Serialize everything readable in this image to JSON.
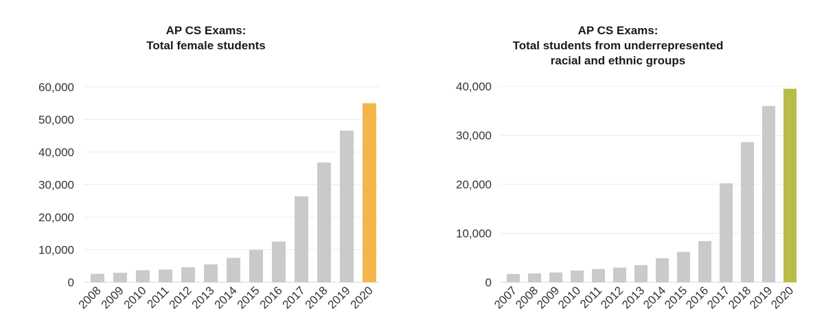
{
  "chart_data": [
    {
      "type": "bar",
      "title_lines": [
        "AP CS Exams:",
        "Total female students"
      ],
      "categories": [
        "2008",
        "2009",
        "2010",
        "2011",
        "2012",
        "2013",
        "2014",
        "2015",
        "2016",
        "2017",
        "2018",
        "2019",
        "2020"
      ],
      "values": [
        2600,
        2900,
        3700,
        3900,
        4600,
        5500,
        7500,
        10000,
        12500,
        26400,
        36800,
        46600,
        55000
      ],
      "ylim": [
        0,
        60000
      ],
      "yticks": [
        0,
        10000,
        20000,
        30000,
        40000,
        50000,
        60000
      ],
      "ytick_labels": [
        "0",
        "10,000",
        "20,000",
        "30,000",
        "40,000",
        "50,000",
        "60,000"
      ],
      "grid": true,
      "bar_color": "#c8cacb",
      "highlight_color": "#f4b54a",
      "highlight_index": 12
    },
    {
      "type": "bar",
      "title_lines": [
        "AP CS Exams:",
        "Total students from underrepresented",
        "racial and ethnic groups"
      ],
      "categories": [
        "2007",
        "2008",
        "2009",
        "2010",
        "2011",
        "2012",
        "2013",
        "2014",
        "2015",
        "2016",
        "2017",
        "2018",
        "2019",
        "2020"
      ],
      "values": [
        1700,
        1800,
        2000,
        2400,
        2700,
        3000,
        3500,
        4900,
        6200,
        8400,
        20200,
        28600,
        36000,
        39500
      ],
      "ylim": [
        0,
        40000
      ],
      "yticks": [
        0,
        10000,
        20000,
        30000,
        40000
      ],
      "ytick_labels": [
        "0",
        "10,000",
        "20,000",
        "30,000",
        "40,000"
      ],
      "grid": true,
      "bar_color": "#c8cacb",
      "highlight_color": "#b8bc48",
      "highlight_index": 13
    }
  ]
}
